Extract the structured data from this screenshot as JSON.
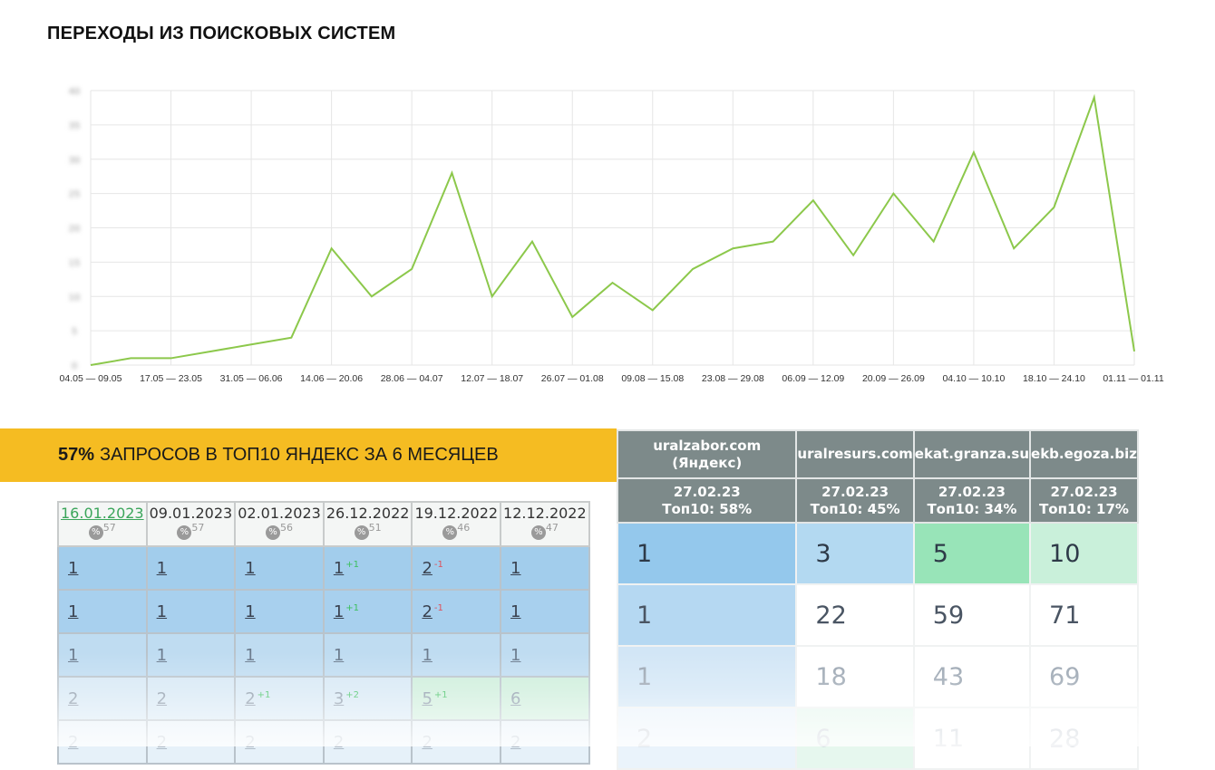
{
  "title": "ПЕРЕХОДЫ ИЗ ПОИСКОВЫХ СИСТЕМ",
  "chart_data": {
    "type": "line",
    "title": "ПЕРЕХОДЫ ИЗ ПОИСКОВЫХ СИСТЕМ",
    "color": "#8cc84b",
    "ylim": [
      0,
      40
    ],
    "yticks": [
      0,
      5,
      10,
      15,
      20,
      25,
      30,
      35,
      40
    ],
    "x_labels": [
      "04.05 — 09.05",
      "17.05 — 23.05",
      "31.05 — 06.06",
      "14.06 — 20.06",
      "28.06 — 04.07",
      "12.07 — 18.07",
      "26.07 — 01.08",
      "09.08 — 15.08",
      "23.08 — 29.08",
      "06.09 — 12.09",
      "20.09 — 26.09",
      "04.10 — 10.10",
      "18.10 — 24.10",
      "01.11 — 01.11"
    ],
    "values": [
      0,
      1,
      1,
      2,
      3,
      4,
      17,
      10,
      14,
      28,
      10,
      18,
      7,
      12,
      8,
      14,
      17,
      18,
      24,
      16,
      25,
      18,
      31,
      17,
      23,
      39,
      2
    ],
    "grid": true
  },
  "banner": {
    "strong": "57%",
    "text": "ЗАПРОСОВ В ТОП10 ЯНДЕКС ЗА 6 МЕСЯЦЕВ",
    "color": "#f5bc22"
  },
  "left_table": {
    "headers": [
      {
        "date": "16.01.2023",
        "pct": "57"
      },
      {
        "date": "09.01.2023",
        "pct": "57"
      },
      {
        "date": "02.01.2023",
        "pct": "56"
      },
      {
        "date": "26.12.2022",
        "pct": "51"
      },
      {
        "date": "19.12.2022",
        "pct": "46"
      },
      {
        "date": "12.12.2022",
        "pct": "47"
      }
    ],
    "pct_icon": "%",
    "rows": [
      [
        {
          "v": "1"
        },
        {
          "v": "1"
        },
        {
          "v": "1"
        },
        {
          "v": "1",
          "d": "+1",
          "dir": "up"
        },
        {
          "v": "2",
          "d": "-1",
          "dir": "dn"
        },
        {
          "v": "1"
        }
      ],
      [
        {
          "v": "1"
        },
        {
          "v": "1"
        },
        {
          "v": "1"
        },
        {
          "v": "1",
          "d": "+1",
          "dir": "up"
        },
        {
          "v": "2",
          "d": "-1",
          "dir": "dn"
        },
        {
          "v": "1"
        }
      ],
      [
        {
          "v": "1"
        },
        {
          "v": "1"
        },
        {
          "v": "1"
        },
        {
          "v": "1"
        },
        {
          "v": "1"
        },
        {
          "v": "1"
        }
      ],
      [
        {
          "v": "2"
        },
        {
          "v": "2"
        },
        {
          "v": "2",
          "d": "+1",
          "dir": "up"
        },
        {
          "v": "3",
          "d": "+2",
          "dir": "up"
        },
        {
          "v": "5",
          "d": "+1",
          "dir": "up"
        },
        {
          "v": "6"
        }
      ],
      [
        {
          "v": "2"
        },
        {
          "v": "2"
        },
        {
          "v": "2"
        },
        {
          "v": "2"
        },
        {
          "v": "2"
        },
        {
          "v": "2"
        }
      ]
    ]
  },
  "right_table": {
    "sites": [
      {
        "name": "uralzabor.com (Яндекс)",
        "date": "27.02.23",
        "top": "Топ10: 58%"
      },
      {
        "name": "uralresurs.com",
        "date": "27.02.23",
        "top": "Топ10: 45%"
      },
      {
        "name": "ekat.granza.su",
        "date": "27.02.23",
        "top": "Топ10: 34%"
      },
      {
        "name": "ekb.egoza.biz",
        "date": "27.02.23",
        "top": "Топ10: 17%"
      }
    ],
    "rows": [
      [
        "1",
        "3",
        "5",
        "10"
      ],
      [
        "1",
        "22",
        "59",
        "71"
      ],
      [
        "1",
        "18",
        "43",
        "69"
      ],
      [
        "2",
        "6",
        "11",
        "28"
      ]
    ]
  }
}
